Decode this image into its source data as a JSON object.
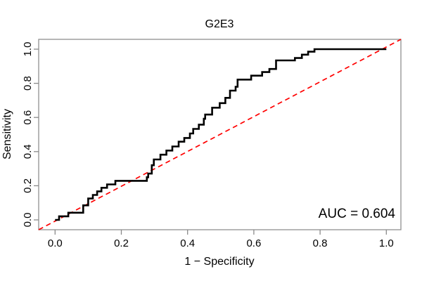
{
  "colors": {
    "background": "#ffffff",
    "curve": "#000000",
    "reference_line": "#ff0000",
    "frame": "#909090",
    "tick": "#8a8a8a",
    "text": "#000000"
  },
  "chart_data": {
    "type": "line",
    "subtype": "roc-step-curve",
    "title": "G2E3",
    "xlabel": "1 − Specificity",
    "ylabel": "Sensitivity",
    "xlim": [
      0,
      1
    ],
    "ylim": [
      0,
      1
    ],
    "grid": false,
    "legend": "none",
    "x_ticks": {
      "labels": [
        "0.0",
        "0.2",
        "0.4",
        "0.6",
        "0.8",
        "1.0"
      ],
      "values": [
        0,
        0.2,
        0.4,
        0.6,
        0.8,
        1.0
      ]
    },
    "y_ticks": {
      "labels": [
        "0.0",
        "0.2",
        "0.4",
        "0.6",
        "0.8",
        "1.0"
      ],
      "values": [
        0,
        0.2,
        0.4,
        0.6,
        0.8,
        1.0
      ]
    },
    "auc_annotation": {
      "text": "AUC = 0.604",
      "value": 0.604,
      "position": "bottom-right"
    },
    "series": [
      {
        "name": "ROC step curve",
        "style": "step",
        "color_key": "curve",
        "line_width": 2.6,
        "start": [
          0,
          0
        ],
        "end": [
          1,
          1
        ],
        "steps": [
          [
            0.012,
            0.021
          ],
          [
            0.04,
            0.042
          ],
          [
            0.085,
            0.085
          ],
          [
            0.1,
            0.125
          ],
          [
            0.114,
            0.146
          ],
          [
            0.127,
            0.167
          ],
          [
            0.14,
            0.188
          ],
          [
            0.157,
            0.208
          ],
          [
            0.182,
            0.229
          ],
          [
            0.277,
            0.25
          ],
          [
            0.281,
            0.271
          ],
          [
            0.292,
            0.32
          ],
          [
            0.298,
            0.354
          ],
          [
            0.318,
            0.382
          ],
          [
            0.336,
            0.406
          ],
          [
            0.354,
            0.43
          ],
          [
            0.373,
            0.458
          ],
          [
            0.39,
            0.48
          ],
          [
            0.407,
            0.506
          ],
          [
            0.417,
            0.533
          ],
          [
            0.434,
            0.558
          ],
          [
            0.449,
            0.592
          ],
          [
            0.453,
            0.617
          ],
          [
            0.474,
            0.657
          ],
          [
            0.497,
            0.684
          ],
          [
            0.514,
            0.715
          ],
          [
            0.528,
            0.757
          ],
          [
            0.545,
            0.78
          ],
          [
            0.551,
            0.822
          ],
          [
            0.592,
            0.845
          ],
          [
            0.625,
            0.866
          ],
          [
            0.647,
            0.884
          ],
          [
            0.667,
            0.934
          ],
          [
            0.724,
            0.948
          ],
          [
            0.745,
            0.968
          ],
          [
            0.764,
            0.985
          ],
          [
            0.783,
            1.0
          ]
        ]
      },
      {
        "name": "Chance diagonal",
        "style": "dashed",
        "color_key": "reference_line",
        "line_width": 1.7,
        "points": [
          [
            0,
            0
          ],
          [
            1,
            1
          ]
        ]
      }
    ]
  }
}
